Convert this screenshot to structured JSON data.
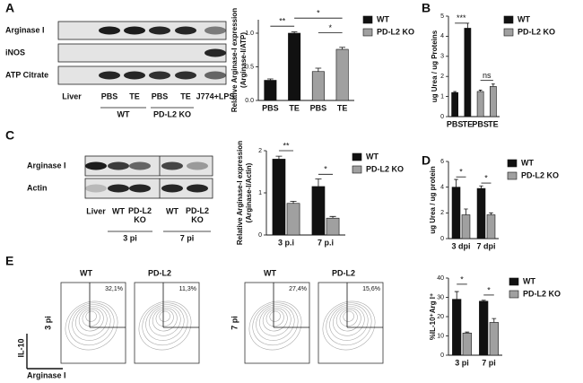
{
  "panel_labels": [
    "A",
    "B",
    "C",
    "D",
    "E"
  ],
  "blots": [
    {
      "rows": [
        "Arginase I",
        "iNOS",
        "ATP Citrate"
      ],
      "lanes": [
        "Liver",
        "PBS",
        "TE",
        "PBS",
        "TE",
        "J774+LPS"
      ],
      "groups": [
        "WT",
        "PD-L2 KO"
      ]
    },
    {
      "rows": [
        "Arginase I",
        "Actin"
      ],
      "lanes": [
        "Liver",
        "WT",
        "PD-L2 KO",
        "WT",
        "PD-L2 KO"
      ],
      "groups": [
        "3 pi",
        "7 pi"
      ]
    }
  ],
  "flow": {
    "plots": [
      {
        "title": "WT",
        "percent": "32,1%"
      },
      {
        "title": "PD-L2",
        "percent": "11,3%"
      },
      {
        "title": "WT",
        "percent": "27,4%"
      },
      {
        "title": "PD-L2",
        "percent": "15,6%"
      }
    ],
    "row_labels": [
      "3 pi",
      "7 pi"
    ],
    "y_label": "IL-10",
    "x_label": "Arginase I"
  },
  "chart_data": [
    {
      "type": "bar",
      "ylabel": [
        "Relative Arginase-I expression",
        "(Arginase-I/ATP)"
      ],
      "categories": [
        "PBS",
        "TE",
        "PBS",
        "TE"
      ],
      "series": [
        {
          "name": "WT",
          "color": "#111111",
          "values": [
            0.3,
            1.0,
            null,
            null
          ],
          "errors": [
            0.02,
            0.02,
            null,
            null
          ]
        },
        {
          "name": "PD-L2 KO",
          "color": "#a0a0a0",
          "values": [
            null,
            null,
            0.43,
            0.76
          ],
          "errors": [
            null,
            null,
            0.05,
            0.03
          ]
        }
      ],
      "ylim": [
        0,
        1.2
      ],
      "yticks": [
        {
          "value": 0,
          "label": "0.0"
        },
        0.5,
        {
          "value": 1,
          "label": "1.0"
        }
      ],
      "annotations": [
        "**",
        "*",
        "*"
      ]
    },
    {
      "type": "bar",
      "ylabel": [
        "ug Urea / ug Proteins"
      ],
      "categories": [
        "PBS",
        "TE",
        "PBS",
        "TE"
      ],
      "series": [
        {
          "name": "WT",
          "color": "#111111",
          "values": [
            1.2,
            4.4,
            null,
            null
          ],
          "errors": [
            0.05,
            0.25,
            null,
            null
          ]
        },
        {
          "name": "PD-L2 KO",
          "color": "#a0a0a0",
          "values": [
            null,
            null,
            1.25,
            1.5
          ],
          "errors": [
            null,
            null,
            0.07,
            0.12
          ]
        }
      ],
      "ylim": [
        0,
        5
      ],
      "yticks": [
        0,
        1,
        2,
        3,
        4,
        5
      ],
      "annotations": [
        "***",
        "ns"
      ]
    },
    {
      "type": "bar",
      "ylabel": [
        "Relative Arginase-I expression",
        "(Arginase-I/Actin)"
      ],
      "categories": [
        "3 p.i",
        "7 p.i"
      ],
      "series": [
        {
          "name": "WT",
          "color": "#111111",
          "values": [
            1.8,
            1.15
          ],
          "errors": [
            0.07,
            0.18
          ]
        },
        {
          "name": "PD-L2 KO",
          "color": "#a0a0a0",
          "values": [
            0.75,
            0.4
          ],
          "errors": [
            0.05,
            0.04
          ]
        }
      ],
      "ylim": [
        0,
        2
      ],
      "yticks": [
        0,
        1,
        2
      ],
      "annotations": [
        "**",
        "*"
      ]
    },
    {
      "type": "bar",
      "ylabel": [
        "ug Urea / ug protein"
      ],
      "categories": [
        "3 dpi",
        "7 dpi"
      ],
      "series": [
        {
          "name": "WT",
          "color": "#111111",
          "values": [
            4.0,
            3.9
          ],
          "errors": [
            0.6,
            0.2
          ]
        },
        {
          "name": "PD-L2 KO",
          "color": "#a0a0a0",
          "values": [
            1.85,
            1.85
          ],
          "errors": [
            0.45,
            0.15
          ]
        }
      ],
      "ylim": [
        0,
        6
      ],
      "yticks": [
        0,
        2,
        4,
        6
      ],
      "annotations": [
        "*",
        "*"
      ]
    },
    {
      "type": "bar",
      "ylabel": [
        "%IL-10⁺Arg I⁺"
      ],
      "categories": [
        "3 pi",
        "7 pi"
      ],
      "series": [
        {
          "name": "WT",
          "color": "#111111",
          "values": [
            29,
            28
          ],
          "errors": [
            4,
            0.5
          ]
        },
        {
          "name": "PD-L2 KO",
          "color": "#a0a0a0",
          "values": [
            11.5,
            17
          ],
          "errors": [
            0.5,
            2
          ]
        }
      ],
      "ylim": [
        0,
        40
      ],
      "yticks": [
        0,
        10,
        20,
        30,
        40
      ],
      "annotations": [
        "*",
        "*"
      ]
    }
  ]
}
